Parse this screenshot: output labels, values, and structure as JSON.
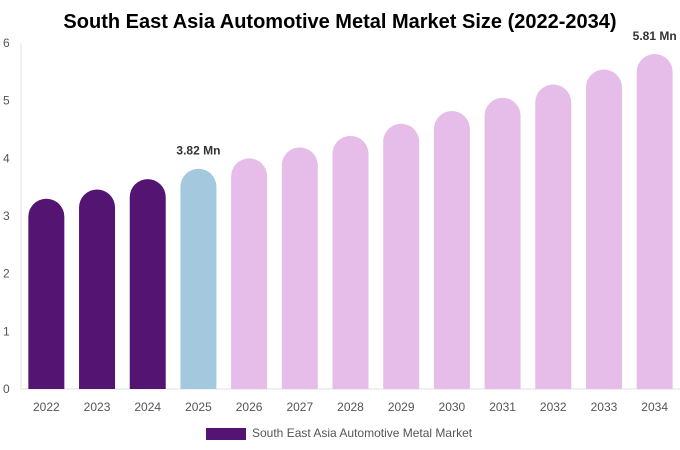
{
  "chart_data": {
    "type": "bar",
    "title": "South East Asia Automotive Metal Market Size (2022-2034)",
    "categories": [
      "2022",
      "2023",
      "2024",
      "2025",
      "2026",
      "2027",
      "2028",
      "2029",
      "2030",
      "2031",
      "2032",
      "2033",
      "2034"
    ],
    "series": [
      {
        "name": "South East Asia Automotive Metal Market",
        "values": [
          3.3,
          3.46,
          3.64,
          3.82,
          4.0,
          4.19,
          4.39,
          4.6,
          4.82,
          5.05,
          5.28,
          5.54,
          5.81
        ]
      }
    ],
    "bar_colors": {
      "historical": "#541472",
      "current": "#a4c9de",
      "forecast": "#e6bde9"
    },
    "ylim": [
      0,
      6
    ],
    "yticks": [
      "0",
      "1",
      "2",
      "3",
      "4",
      "5",
      "6"
    ],
    "annotations": [
      {
        "category": "2025",
        "text": "3.82 Mn"
      },
      {
        "category": "2034",
        "text": "5.81 Mn"
      }
    ],
    "legend_position": "bottom",
    "grid": false
  }
}
